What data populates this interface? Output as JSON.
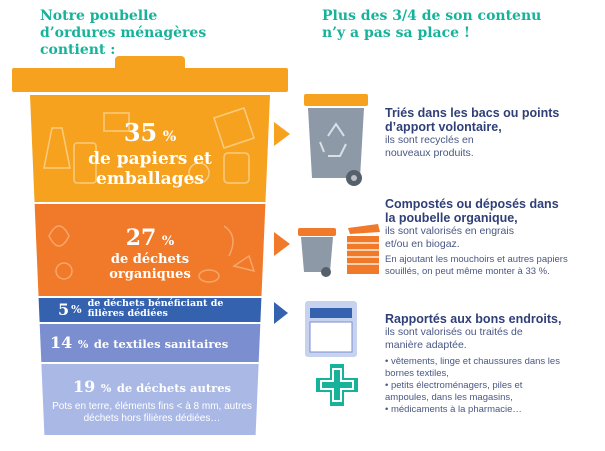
{
  "left_title": "Notre poubelle d’ordures ménagères contient :",
  "right_title": "Plus des 3/4 de son contenu n’y a pas sa place !",
  "sections": {
    "papiers": {
      "pct": "35",
      "unit": "%",
      "label": "de papiers et emballages",
      "color": "#f6a21e"
    },
    "organiques": {
      "pct": "27",
      "unit": "%",
      "label": "de déchets organiques",
      "color": "#f07a2a"
    },
    "filieres": {
      "pct": "5",
      "unit": "%",
      "label": "de déchets bénéficiant de filières dédiées",
      "color": "#3562ae"
    },
    "textiles": {
      "pct": "14",
      "unit": "%",
      "label": "de textiles sanitaires",
      "color": "#7b8ed0"
    },
    "autres": {
      "pct": "19",
      "unit": "%",
      "label": "de déchets autres",
      "note": "Pots en terre, éléments fins < à 8 mm, autres déchets hors filières dédiées…",
      "color": "#aab8e6"
    }
  },
  "right_blocks": {
    "tri": {
      "title": "Triés dans les bacs ou points d’apport volontaire,",
      "text": "ils sont recyclés en nouveaux produits."
    },
    "compost": {
      "title": "Compostés ou déposés dans la poubelle organique,",
      "text": "ils sont valorisés en engrais et/ou en biogaz.",
      "note": "En ajoutant les mouchoirs et autres papiers souillés, on peut même monter à 33 %."
    },
    "rapport": {
      "title": "Rapportés aux bons endroits,",
      "text": "ils sont valorisés ou traités de manière adaptée.",
      "bullets": [
        "• vêtements, linge et chaussures dans les bornes textiles,",
        "• petits électroménagers, piles et ampoules, dans les magasins,",
        "• médicaments à la pharmacie…"
      ]
    }
  },
  "icons": [
    "recycling-bin-icon",
    "organic-bin-icon",
    "compost-crate-icon",
    "collection-box-icon",
    "pharmacy-cross-icon",
    "arrow-right-icon"
  ]
}
